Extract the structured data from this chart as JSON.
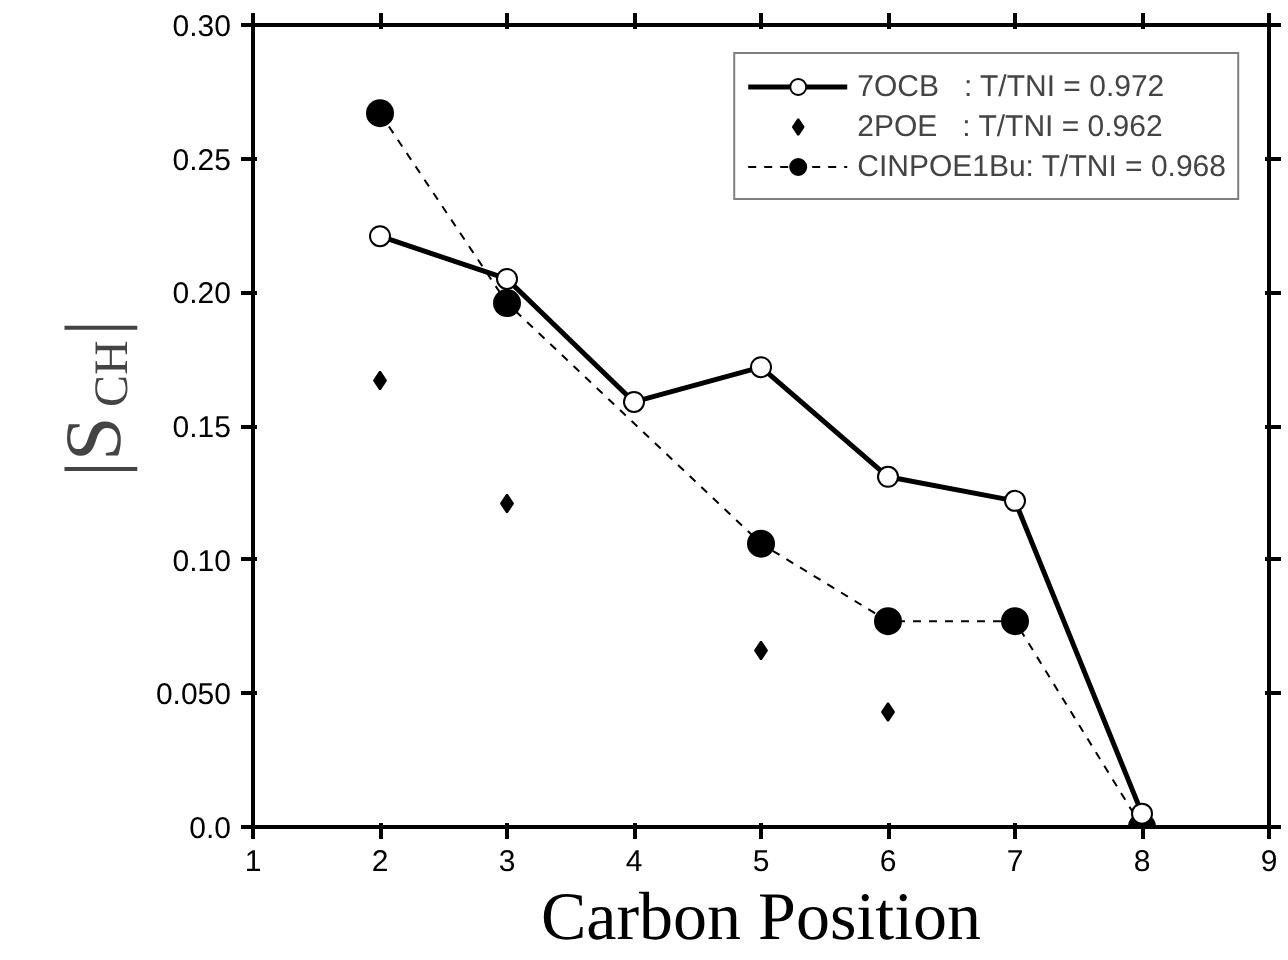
{
  "chart_data": {
    "type": "line",
    "xlabel": "Carbon Position",
    "ylabel": "|S$_{CH}$|",
    "xlim": [
      1,
      9
    ],
    "xticks": [
      1,
      2,
      3,
      4,
      5,
      6,
      7,
      8,
      9
    ],
    "ylim": [
      0,
      0.3
    ],
    "yticks": [
      {
        "value": 0,
        "label": "0.0"
      },
      {
        "value": 0.05,
        "label": "0.050"
      },
      {
        "value": 0.1,
        "label": "0.10"
      },
      {
        "value": 0.15,
        "label": "0.15"
      },
      {
        "value": 0.2,
        "label": "0.20"
      },
      {
        "value": 0.25,
        "label": "0.25"
      },
      {
        "value": 0.3,
        "label": "0.30"
      }
    ],
    "grid": false,
    "legend": "top right",
    "series": [
      {
        "name": "7OCB   : T/TNI = 0.972",
        "type": "line",
        "marker": "circle",
        "line_style": "solid",
        "color": "#000000",
        "x": [
          2,
          3,
          4,
          5,
          6,
          7,
          8
        ],
        "values": [
          0.221,
          0.205,
          0.159,
          0.172,
          0.131,
          0.122,
          0.005
        ]
      },
      {
        "name": "2POE   : T/TNI = 0.962",
        "type": "scatter",
        "marker": "diamond",
        "color": "#000000",
        "x": [
          2,
          3,
          5,
          6
        ],
        "values": [
          0.167,
          0.121,
          0.066,
          0.043
        ]
      },
      {
        "name": "CINPOE1Bu: T/TNI = 0.968",
        "type": "line",
        "marker": "circle",
        "line_style": "dashed",
        "color": "#000000",
        "x": [
          2,
          3,
          5,
          6,
          7,
          8
        ],
        "values": [
          0.267,
          0.196,
          0.106,
          0.077,
          0.077,
          0.0
        ]
      }
    ]
  }
}
